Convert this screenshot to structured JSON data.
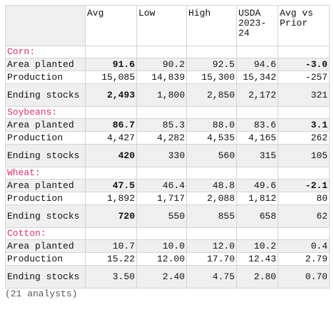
{
  "headers": [
    "",
    "Avg",
    "Low",
    "High",
    "USDA 2023-24",
    "Avg vs Prior"
  ],
  "sections": [
    {
      "name": "Corn:",
      "rows": [
        {
          "label": "Area planted",
          "avg": "91.6",
          "low": "90.2",
          "high": "92.5",
          "usda": "94.6",
          "diff": "-3.0",
          "bold_avg": true,
          "bold_diff": true
        },
        {
          "label": "Production",
          "avg": "15,085",
          "low": "14,839",
          "high": "15,300",
          "usda": "15,342",
          "diff": "-257",
          "bold_avg": false,
          "bold_diff": false
        },
        {
          "label": "Ending stocks",
          "avg": "2,493",
          "low": "1,800",
          "high": "2,850",
          "usda": "2,172",
          "diff": "321",
          "bold_avg": true,
          "bold_diff": false
        }
      ]
    },
    {
      "name": "Soybeans:",
      "rows": [
        {
          "label": "Area planted",
          "avg": "86.7",
          "low": "85.3",
          "high": "88.0",
          "usda": "83.6",
          "diff": "3.1",
          "bold_avg": true,
          "bold_diff": true
        },
        {
          "label": "Production",
          "avg": "4,427",
          "low": "4,282",
          "high": "4,535",
          "usda": "4,165",
          "diff": "262",
          "bold_avg": false,
          "bold_diff": false
        },
        {
          "label": "Ending stocks",
          "avg": "420",
          "low": "330",
          "high": "560",
          "usda": "315",
          "diff": "105",
          "bold_avg": true,
          "bold_diff": false
        }
      ]
    },
    {
      "name": "Wheat:",
      "rows": [
        {
          "label": "Area planted",
          "avg": "47.5",
          "low": "46.4",
          "high": "48.8",
          "usda": "49.6",
          "diff": "-2.1",
          "bold_avg": true,
          "bold_diff": true
        },
        {
          "label": "Production",
          "avg": "1,892",
          "low": "1,717",
          "high": "2,088",
          "usda": "1,812",
          "diff": "80",
          "bold_avg": false,
          "bold_diff": false
        },
        {
          "label": "Ending stocks",
          "avg": "720",
          "low": "550",
          "high": "855",
          "usda": "658",
          "diff": "62",
          "bold_avg": true,
          "bold_diff": false
        }
      ]
    },
    {
      "name": "Cotton:",
      "rows": [
        {
          "label": "Area planted",
          "avg": "10.7",
          "low": "10.0",
          "high": "12.0",
          "usda": "10.2",
          "diff": "0.4",
          "bold_avg": false,
          "bold_diff": false
        },
        {
          "label": "Production",
          "avg": "15.22",
          "low": "12.00",
          "high": "17.70",
          "usda": "12.43",
          "diff": "2.79",
          "bold_avg": false,
          "bold_diff": false
        },
        {
          "label": "Ending stocks",
          "avg": "3.50",
          "low": "2.40",
          "high": "4.75",
          "usda": "2.80",
          "diff": "0.70",
          "bold_avg": false,
          "bold_diff": false
        }
      ]
    }
  ],
  "footer": "(21 analysts)",
  "colors": {
    "section_name": "#e0306a",
    "shade": "#efefef",
    "border": "#d4d4d4"
  }
}
